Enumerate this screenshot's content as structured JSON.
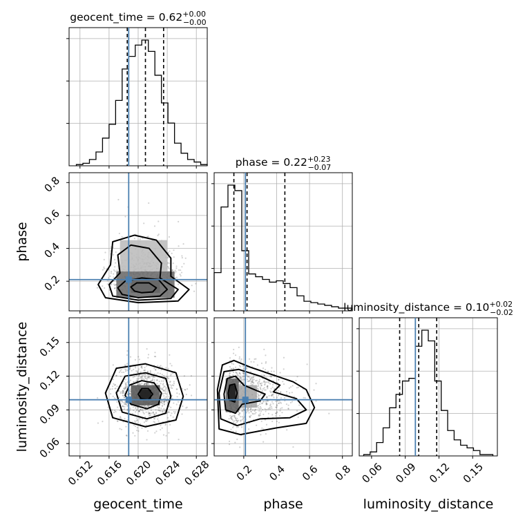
{
  "figure": {
    "type": "corner-plot",
    "truth_color": "#4a7fb0",
    "hist_color": "#000000",
    "grid": true
  },
  "chart_data": {
    "type": "corner",
    "parameters": [
      {
        "name": "geocent_time",
        "axis_label": "geocent_time",
        "title": {
          "base": "geocent_time = 0.62",
          "plus": "+0.00",
          "minus": "−0.00"
        },
        "range": [
          0.6105,
          0.6295
        ],
        "ticks": [
          0.612,
          0.616,
          0.62,
          0.624,
          0.628
        ],
        "tick_labels": [
          "0.612",
          "0.616",
          "0.620",
          "0.624",
          "0.628"
        ],
        "truth": 0.6187,
        "quantiles": [
          0.6185,
          0.621,
          0.6235
        ],
        "hist": {
          "edges_start": 0.6115,
          "bin_width": 0.0009,
          "counts": [
            0.01,
            0.02,
            0.05,
            0.11,
            0.22,
            0.33,
            0.52,
            0.77,
            0.87,
            0.96,
            1.0,
            0.91,
            0.72,
            0.5,
            0.34,
            0.18,
            0.1,
            0.05,
            0.03,
            0.01
          ]
        }
      },
      {
        "name": "phase",
        "axis_label": "phase",
        "title": {
          "base": "phase = 0.22",
          "plus": "+0.23",
          "minus": "−0.07"
        },
        "range": [
          0.02,
          0.86
        ],
        "ticks": [
          0.2,
          0.4,
          0.6,
          0.8
        ],
        "tick_labels": [
          "0.2",
          "0.4",
          "0.6",
          "0.8"
        ],
        "truth": 0.21,
        "quantiles": [
          0.14,
          0.22,
          0.45
        ],
        "hist": {
          "edges_start": 0.02,
          "bin_width": 0.042,
          "counts": [
            0.28,
            0.76,
            0.92,
            0.88,
            0.44,
            0.27,
            0.25,
            0.23,
            0.21,
            0.22,
            0.2,
            0.17,
            0.11,
            0.07,
            0.06,
            0.05,
            0.04,
            0.03,
            0.02,
            0.02
          ]
        }
      },
      {
        "name": "luminosity_distance",
        "axis_label": "luminosity_distance",
        "title": {
          "base": "luminosity_distance = 0.10",
          "plus": "+0.02",
          "minus": "−0.02"
        },
        "range": [
          0.049,
          0.172
        ],
        "ticks": [
          0.06,
          0.09,
          0.12,
          0.15
        ],
        "tick_labels": [
          "0.06",
          "0.09",
          "0.12",
          "0.15"
        ],
        "truth": 0.099,
        "quantiles": [
          0.085,
          0.102,
          0.118
        ],
        "hist": {
          "edges_start": 0.053,
          "bin_width": 0.00575,
          "counts": [
            0.01,
            0.03,
            0.1,
            0.21,
            0.36,
            0.46,
            0.56,
            0.58,
            0.82,
            0.94,
            0.86,
            0.56,
            0.34,
            0.19,
            0.12,
            0.08,
            0.06,
            0.04,
            0.01,
            0.01
          ]
        }
      }
    ],
    "pairs": [
      {
        "x": "geocent_time",
        "y": "phase",
        "center": [
          0.621,
          0.18
        ],
        "spread": [
          0.0023,
          0.09
        ],
        "density_cells": [
          {
            "x": [
              0.619,
              0.623
            ],
            "y": [
              0.13,
              0.22
            ],
            "level": 0.95
          },
          {
            "x": [
              0.617,
              0.625
            ],
            "y": [
              0.1,
              0.26
            ],
            "level": 0.6
          },
          {
            "x": [
              0.6175,
              0.624
            ],
            "y": [
              0.26,
              0.45
            ],
            "level": 0.2
          }
        ],
        "contours": [
          {
            "level": 1,
            "points": [
              [
                0.6195,
                0.14
              ],
              [
                0.6205,
                0.13
              ],
              [
                0.622,
                0.135
              ],
              [
                0.6225,
                0.16
              ],
              [
                0.6215,
                0.19
              ],
              [
                0.6198,
                0.19
              ],
              [
                0.619,
                0.165
              ]
            ]
          },
          {
            "level": 2,
            "points": [
              [
                0.6178,
                0.12
              ],
              [
                0.62,
                0.1
              ],
              [
                0.623,
                0.11
              ],
              [
                0.624,
                0.15
              ],
              [
                0.6228,
                0.21
              ],
              [
                0.6205,
                0.22
              ],
              [
                0.6182,
                0.2
              ],
              [
                0.6172,
                0.16
              ]
            ]
          },
          {
            "level": 3,
            "points": [
              [
                0.6165,
                0.11
              ],
              [
                0.62,
                0.085
              ],
              [
                0.6245,
                0.095
              ],
              [
                0.6255,
                0.15
              ],
              [
                0.623,
                0.22
              ],
              [
                0.6232,
                0.31
              ],
              [
                0.6215,
                0.4
              ],
              [
                0.619,
                0.42
              ],
              [
                0.6172,
                0.36
              ],
              [
                0.6175,
                0.25
              ],
              [
                0.616,
                0.18
              ]
            ]
          },
          {
            "level": 4,
            "points": [
              [
                0.6155,
                0.1
              ],
              [
                0.62,
                0.07
              ],
              [
                0.6255,
                0.08
              ],
              [
                0.627,
                0.15
              ],
              [
                0.6245,
                0.23
              ],
              [
                0.6245,
                0.34
              ],
              [
                0.6225,
                0.45
              ],
              [
                0.6195,
                0.48
              ],
              [
                0.6165,
                0.44
              ],
              [
                0.6162,
                0.3
              ],
              [
                0.6145,
                0.18
              ]
            ]
          }
        ]
      },
      {
        "x": "geocent_time",
        "y": "luminosity_distance",
        "center": [
          0.621,
          0.104
        ],
        "spread": [
          0.0022,
          0.014
        ],
        "density_cells": [
          {
            "x": [
              0.619,
              0.623
            ],
            "y": [
              0.094,
              0.112
            ],
            "level": 0.7
          },
          {
            "x": [
              0.6202,
              0.6218
            ],
            "y": [
              0.099,
              0.108
            ],
            "level": 1.0
          }
        ],
        "contours": [
          {
            "level": 1,
            "points": [
              [
                0.6204,
                0.1
              ],
              [
                0.6214,
                0.099
              ],
              [
                0.622,
                0.104
              ],
              [
                0.6214,
                0.109
              ],
              [
                0.6205,
                0.109
              ],
              [
                0.62,
                0.104
              ]
            ]
          },
          {
            "level": 2,
            "points": [
              [
                0.619,
                0.095
              ],
              [
                0.6212,
                0.091
              ],
              [
                0.6228,
                0.095
              ],
              [
                0.6232,
                0.105
              ],
              [
                0.6222,
                0.114
              ],
              [
                0.6205,
                0.116
              ],
              [
                0.6188,
                0.112
              ],
              [
                0.6182,
                0.103
              ]
            ]
          },
          {
            "level": 3,
            "points": [
              [
                0.6178,
                0.088
              ],
              [
                0.6212,
                0.082
              ],
              [
                0.6238,
                0.087
              ],
              [
                0.6245,
                0.102
              ],
              [
                0.6238,
                0.118
              ],
              [
                0.621,
                0.123
              ],
              [
                0.6182,
                0.12
              ],
              [
                0.617,
                0.105
              ]
            ]
          },
          {
            "level": 4,
            "points": [
              [
                0.6165,
                0.083
              ],
              [
                0.621,
                0.075
              ],
              [
                0.6252,
                0.081
              ],
              [
                0.6262,
                0.102
              ],
              [
                0.6252,
                0.123
              ],
              [
                0.621,
                0.131
              ],
              [
                0.617,
                0.127
              ],
              [
                0.6155,
                0.105
              ]
            ]
          }
        ]
      },
      {
        "x": "phase",
        "y": "luminosity_distance",
        "center": [
          0.15,
          0.103
        ],
        "spread": [
          0.12,
          0.014
        ],
        "density_cells": [
          {
            "x": [
              0.09,
              0.17
            ],
            "y": [
              0.088,
              0.118
            ],
            "level": 0.65
          },
          {
            "x": [
              0.11,
              0.15
            ],
            "y": [
              0.098,
              0.112
            ],
            "level": 1.0
          },
          {
            "x": [
              0.17,
              0.28
            ],
            "y": [
              0.092,
              0.112
            ],
            "level": 0.3
          }
        ],
        "contours": [
          {
            "level": 1,
            "points": [
              [
                0.11,
                0.099
              ],
              [
                0.145,
                0.097
              ],
              [
                0.16,
                0.105
              ],
              [
                0.145,
                0.113
              ],
              [
                0.115,
                0.112
              ],
              [
                0.105,
                0.105
              ]
            ]
          },
          {
            "level": 2,
            "points": [
              [
                0.09,
                0.09
              ],
              [
                0.15,
                0.087
              ],
              [
                0.19,
                0.095
              ],
              [
                0.3,
                0.098
              ],
              [
                0.33,
                0.104
              ],
              [
                0.2,
                0.112
              ],
              [
                0.15,
                0.12
              ],
              [
                0.1,
                0.118
              ],
              [
                0.08,
                0.104
              ]
            ]
          },
          {
            "level": 3,
            "points": [
              [
                0.06,
                0.082
              ],
              [
                0.16,
                0.076
              ],
              [
                0.3,
                0.082
              ],
              [
                0.48,
                0.083
              ],
              [
                0.58,
                0.09
              ],
              [
                0.52,
                0.1
              ],
              [
                0.38,
                0.106
              ],
              [
                0.42,
                0.112
              ],
              [
                0.3,
                0.12
              ],
              [
                0.17,
                0.126
              ],
              [
                0.08,
                0.124
              ],
              [
                0.05,
                0.105
              ]
            ]
          },
          {
            "level": 4,
            "points": [
              [
                0.05,
                0.073
              ],
              [
                0.18,
                0.068
              ],
              [
                0.4,
                0.074
              ],
              [
                0.58,
                0.078
              ],
              [
                0.63,
                0.092
              ],
              [
                0.58,
                0.108
              ],
              [
                0.5,
                0.115
              ],
              [
                0.4,
                0.12
              ],
              [
                0.24,
                0.128
              ],
              [
                0.14,
                0.134
              ],
              [
                0.07,
                0.13
              ],
              [
                0.04,
                0.108
              ]
            ]
          }
        ]
      }
    ]
  }
}
